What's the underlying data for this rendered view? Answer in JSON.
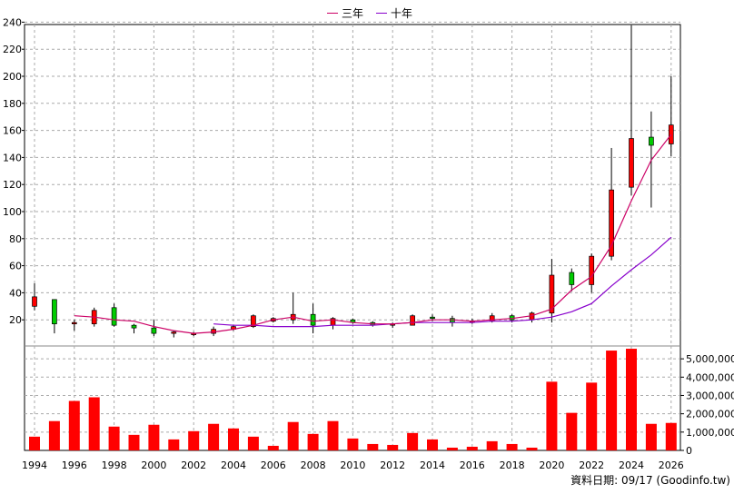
{
  "chart_data": {
    "type": "candlestick",
    "legend": [
      {
        "label": "三年",
        "color": "#cc0066"
      },
      {
        "label": "十年",
        "color": "#8800cc"
      }
    ],
    "footnote": "資料日期: 09/17 (Goodinfo.tw)",
    "price_axis": {
      "ylim": [
        0,
        245
      ],
      "ticks": [
        20,
        40,
        60,
        80,
        100,
        120,
        140,
        160,
        180,
        200,
        220,
        240
      ]
    },
    "volume_axis": {
      "ylim": [
        0,
        5800000
      ],
      "ticks": [
        0,
        1000000,
        2000000,
        3000000,
        4000000,
        5000000
      ],
      "tick_labels": [
        "0",
        "1,000,000",
        "2,000,000",
        "3,000,000",
        "4,000,000",
        "5,000,000"
      ]
    },
    "x_tick_labels": [
      "1994",
      "1996",
      "1998",
      "2000",
      "2002",
      "2004",
      "2006",
      "2008",
      "2010",
      "2012",
      "2014",
      "2016",
      "2018",
      "2020",
      "2022",
      "2024",
      "2026"
    ],
    "candles": [
      {
        "year": 1994,
        "open": 30,
        "high": 47,
        "low": 27,
        "close": 37
      },
      {
        "year": 1995,
        "open": 35,
        "high": 35,
        "low": 10,
        "close": 17
      },
      {
        "year": 1996,
        "open": 17,
        "high": 20,
        "low": 12,
        "close": 18
      },
      {
        "year": 1997,
        "open": 17,
        "high": 29,
        "low": 15,
        "close": 27
      },
      {
        "year": 1998,
        "open": 29,
        "high": 32,
        "low": 15,
        "close": 16
      },
      {
        "year": 1999,
        "open": 16,
        "high": 17,
        "low": 10,
        "close": 14
      },
      {
        "year": 2000,
        "open": 14,
        "high": 20,
        "low": 8,
        "close": 10
      },
      {
        "year": 2001,
        "open": 10,
        "high": 12,
        "low": 7,
        "close": 11
      },
      {
        "year": 2002,
        "open": 10,
        "high": 11,
        "low": 8,
        "close": 10
      },
      {
        "year": 2003,
        "open": 10,
        "high": 15,
        "low": 8,
        "close": 13
      },
      {
        "year": 2004,
        "open": 13,
        "high": 16,
        "low": 12,
        "close": 15
      },
      {
        "year": 2005,
        "open": 15,
        "high": 24,
        "low": 14,
        "close": 23
      },
      {
        "year": 2006,
        "open": 19,
        "high": 22,
        "low": 18,
        "close": 21
      },
      {
        "year": 2007,
        "open": 20,
        "high": 40,
        "low": 17,
        "close": 24
      },
      {
        "year": 2008,
        "open": 24,
        "high": 32,
        "low": 10,
        "close": 16
      },
      {
        "year": 2009,
        "open": 16,
        "high": 22,
        "low": 13,
        "close": 21
      },
      {
        "year": 2010,
        "open": 20,
        "high": 21,
        "low": 17,
        "close": 18
      },
      {
        "year": 2011,
        "open": 18,
        "high": 19,
        "low": 15,
        "close": 16
      },
      {
        "year": 2012,
        "open": 17,
        "high": 18,
        "low": 14,
        "close": 17
      },
      {
        "year": 2013,
        "open": 16,
        "high": 24,
        "low": 16,
        "close": 23
      },
      {
        "year": 2014,
        "open": 22,
        "high": 24,
        "low": 19,
        "close": 21
      },
      {
        "year": 2015,
        "open": 21,
        "high": 23,
        "low": 15,
        "close": 18
      },
      {
        "year": 2016,
        "open": 18,
        "high": 21,
        "low": 17,
        "close": 19
      },
      {
        "year": 2017,
        "open": 19,
        "high": 25,
        "low": 18,
        "close": 23
      },
      {
        "year": 2018,
        "open": 23,
        "high": 24,
        "low": 18,
        "close": 20
      },
      {
        "year": 2019,
        "open": 20,
        "high": 26,
        "low": 18,
        "close": 25
      },
      {
        "year": 2020,
        "open": 25,
        "high": 65,
        "low": 18,
        "close": 53
      },
      {
        "year": 2021,
        "open": 55,
        "high": 58,
        "low": 41,
        "close": 46
      },
      {
        "year": 2022,
        "open": 46,
        "high": 69,
        "low": 40,
        "close": 67
      },
      {
        "year": 2023,
        "open": 67,
        "high": 147,
        "low": 64,
        "close": 116
      },
      {
        "year": 2024,
        "open": 118,
        "high": 238,
        "low": 112,
        "close": 154
      },
      {
        "year": 2025,
        "open": 155,
        "high": 174,
        "low": 103,
        "close": 149
      },
      {
        "year": 2026,
        "open": 150,
        "high": 200,
        "low": 141,
        "close": 164
      }
    ],
    "ma3": [
      [
        1996,
        23
      ],
      [
        1997,
        22
      ],
      [
        1998,
        20
      ],
      [
        1999,
        19
      ],
      [
        2000,
        15
      ],
      [
        2001,
        12
      ],
      [
        2002,
        10
      ],
      [
        2003,
        11
      ],
      [
        2004,
        13
      ],
      [
        2005,
        16
      ],
      [
        2006,
        20
      ],
      [
        2007,
        22
      ],
      [
        2008,
        19
      ],
      [
        2009,
        20
      ],
      [
        2010,
        18
      ],
      [
        2011,
        17
      ],
      [
        2012,
        17
      ],
      [
        2013,
        18
      ],
      [
        2014,
        20
      ],
      [
        2015,
        20
      ],
      [
        2016,
        19
      ],
      [
        2017,
        20
      ],
      [
        2018,
        21
      ],
      [
        2019,
        23
      ],
      [
        2020,
        28
      ],
      [
        2021,
        42
      ],
      [
        2022,
        52
      ],
      [
        2023,
        75
      ],
      [
        2024,
        108
      ],
      [
        2025,
        138
      ],
      [
        2026,
        157
      ]
    ],
    "ma10": [
      [
        2003,
        17
      ],
      [
        2004,
        16
      ],
      [
        2005,
        16
      ],
      [
        2006,
        15
      ],
      [
        2007,
        15
      ],
      [
        2008,
        15
      ],
      [
        2009,
        16
      ],
      [
        2010,
        16
      ],
      [
        2011,
        16
      ],
      [
        2012,
        17
      ],
      [
        2013,
        18
      ],
      [
        2014,
        18
      ],
      [
        2015,
        18
      ],
      [
        2016,
        18
      ],
      [
        2017,
        19
      ],
      [
        2018,
        19
      ],
      [
        2019,
        20
      ],
      [
        2020,
        22
      ],
      [
        2021,
        26
      ],
      [
        2022,
        32
      ],
      [
        2023,
        45
      ],
      [
        2024,
        57
      ],
      [
        2025,
        68
      ],
      [
        2026,
        81
      ]
    ],
    "volume": [
      {
        "year": 1994,
        "value": 750000
      },
      {
        "year": 1995,
        "value": 1600000
      },
      {
        "year": 1996,
        "value": 2700000
      },
      {
        "year": 1997,
        "value": 2900000
      },
      {
        "year": 1998,
        "value": 1300000
      },
      {
        "year": 1999,
        "value": 850000
      },
      {
        "year": 2000,
        "value": 1400000
      },
      {
        "year": 2001,
        "value": 600000
      },
      {
        "year": 2002,
        "value": 1050000
      },
      {
        "year": 2003,
        "value": 1450000
      },
      {
        "year": 2004,
        "value": 1200000
      },
      {
        "year": 2005,
        "value": 750000
      },
      {
        "year": 2006,
        "value": 250000
      },
      {
        "year": 2007,
        "value": 1550000
      },
      {
        "year": 2008,
        "value": 900000
      },
      {
        "year": 2009,
        "value": 1600000
      },
      {
        "year": 2010,
        "value": 650000
      },
      {
        "year": 2011,
        "value": 350000
      },
      {
        "year": 2012,
        "value": 300000
      },
      {
        "year": 2013,
        "value": 950000
      },
      {
        "year": 2014,
        "value": 600000
      },
      {
        "year": 2015,
        "value": 150000
      },
      {
        "year": 2016,
        "value": 200000
      },
      {
        "year": 2017,
        "value": 500000
      },
      {
        "year": 2018,
        "value": 350000
      },
      {
        "year": 2019,
        "value": 150000
      },
      {
        "year": 2020,
        "value": 3750000
      },
      {
        "year": 2021,
        "value": 2050000
      },
      {
        "year": 2022,
        "value": 3700000
      },
      {
        "year": 2023,
        "value": 5450000
      },
      {
        "year": 2024,
        "value": 5550000
      },
      {
        "year": 2025,
        "value": 1450000
      },
      {
        "year": 2026,
        "value": 1500000
      }
    ]
  }
}
